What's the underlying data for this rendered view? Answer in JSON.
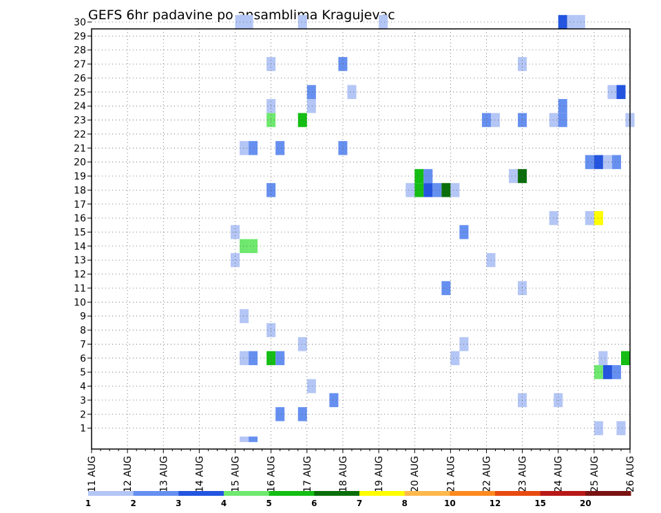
{
  "chart_data": {
    "type": "heatmap",
    "title": "GEFS 6hr padavine po ansamblima Kragujevac",
    "xlabel": "",
    "ylabel": "",
    "x_tick_labels": [
      "11 AUG",
      "12 AUG",
      "13 AUG",
      "14 AUG",
      "15 AUG",
      "16 AUG",
      "17 AUG",
      "18 AUG",
      "19 AUG",
      "20 AUG",
      "21 AUG",
      "22 AUG",
      "23 AUG",
      "24 AUG",
      "25 AUG",
      "26 AUG"
    ],
    "y_tick_labels": [
      "1",
      "2",
      "3",
      "4",
      "5",
      "6",
      "7",
      "8",
      "9",
      "10",
      "11",
      "12",
      "13",
      "14",
      "15",
      "16",
      "17",
      "18",
      "19",
      "20",
      "21",
      "22",
      "23",
      "24",
      "25",
      "26",
      "27",
      "28",
      "29",
      "30"
    ],
    "xlim": [
      0,
      60
    ],
    "ylim": [
      0,
      30
    ],
    "grid": true,
    "colorbar": {
      "labels": [
        "1",
        "2",
        "3",
        "4",
        "5",
        "6",
        "7",
        "8",
        "10",
        "12",
        "15",
        "20"
      ],
      "colors": [
        "#b4c6f5",
        "#6690f0",
        "#2455e0",
        "#6fe86f",
        "#14be14",
        "#0a6e0a",
        "#ffff00",
        "#ffb84d",
        "#ff8a1f",
        "#e84a10",
        "#b81818",
        "#7a1212",
        "#5a0c0c"
      ]
    },
    "cells": [
      {
        "x": 16.5,
        "y": 30,
        "c": 0
      },
      {
        "x": 17.0,
        "y": 30,
        "c": 0
      },
      {
        "x": 17.5,
        "y": 30,
        "c": 0
      },
      {
        "x": 23.5,
        "y": 30,
        "c": 0
      },
      {
        "x": 32.5,
        "y": 30,
        "c": 0
      },
      {
        "x": 52.5,
        "y": 30,
        "c": 2
      },
      {
        "x": 53.5,
        "y": 30,
        "c": 0
      },
      {
        "x": 54.5,
        "y": 30,
        "c": 0
      },
      {
        "x": 20,
        "y": 27,
        "c": 0
      },
      {
        "x": 28,
        "y": 27,
        "c": 1
      },
      {
        "x": 48,
        "y": 27,
        "c": 0
      },
      {
        "x": 24.5,
        "y": 25,
        "c": 1
      },
      {
        "x": 29,
        "y": 25,
        "c": 0
      },
      {
        "x": 58,
        "y": 25,
        "c": 0
      },
      {
        "x": 59,
        "y": 25,
        "c": 2
      },
      {
        "x": 20,
        "y": 24,
        "c": 0
      },
      {
        "x": 24.5,
        "y": 24,
        "c": 0
      },
      {
        "x": 52.5,
        "y": 24,
        "c": 1
      },
      {
        "x": 20,
        "y": 23,
        "c": 3
      },
      {
        "x": 23.5,
        "y": 23,
        "c": 4
      },
      {
        "x": 44,
        "y": 23,
        "c": 1
      },
      {
        "x": 45,
        "y": 23,
        "c": 0
      },
      {
        "x": 48,
        "y": 23,
        "c": 1
      },
      {
        "x": 51.5,
        "y": 23,
        "c": 0
      },
      {
        "x": 52.5,
        "y": 23,
        "c": 1
      },
      {
        "x": 60,
        "y": 23,
        "c": 0
      },
      {
        "x": 17,
        "y": 21,
        "c": 0
      },
      {
        "x": 18,
        "y": 21,
        "c": 1
      },
      {
        "x": 21,
        "y": 21,
        "c": 1
      },
      {
        "x": 28,
        "y": 21,
        "c": 1
      },
      {
        "x": 55.5,
        "y": 20,
        "c": 1
      },
      {
        "x": 56.5,
        "y": 20,
        "c": 2
      },
      {
        "x": 57.5,
        "y": 20,
        "c": 0
      },
      {
        "x": 58.5,
        "y": 20,
        "c": 1
      },
      {
        "x": 36.5,
        "y": 19,
        "c": 4
      },
      {
        "x": 37.5,
        "y": 19,
        "c": 1
      },
      {
        "x": 47,
        "y": 19,
        "c": 0
      },
      {
        "x": 48,
        "y": 19,
        "c": 5
      },
      {
        "x": 35.5,
        "y": 18,
        "c": 0
      },
      {
        "x": 36.5,
        "y": 18,
        "c": 4
      },
      {
        "x": 37.5,
        "y": 18,
        "c": 2
      },
      {
        "x": 38.5,
        "y": 18,
        "c": 1
      },
      {
        "x": 39.5,
        "y": 18,
        "c": 5
      },
      {
        "x": 40.5,
        "y": 18,
        "c": 0
      },
      {
        "x": 20,
        "y": 18,
        "c": 1
      },
      {
        "x": 51.5,
        "y": 16,
        "c": 0
      },
      {
        "x": 55.5,
        "y": 16,
        "c": 0
      },
      {
        "x": 56.5,
        "y": 16,
        "c": 6
      },
      {
        "x": 16,
        "y": 15,
        "c": 0
      },
      {
        "x": 41.5,
        "y": 15,
        "c": 1
      },
      {
        "x": 17,
        "y": 14,
        "c": 3
      },
      {
        "x": 18,
        "y": 14,
        "c": 3
      },
      {
        "x": 16,
        "y": 13,
        "c": 0
      },
      {
        "x": 44.5,
        "y": 13,
        "c": 0
      },
      {
        "x": 39.5,
        "y": 11,
        "c": 1
      },
      {
        "x": 48,
        "y": 11,
        "c": 0
      },
      {
        "x": 17,
        "y": 9,
        "c": 0
      },
      {
        "x": 20,
        "y": 8,
        "c": 0
      },
      {
        "x": 23.5,
        "y": 7,
        "c": 0
      },
      {
        "x": 41.5,
        "y": 7,
        "c": 0
      },
      {
        "x": 17,
        "y": 6,
        "c": 0
      },
      {
        "x": 18,
        "y": 6,
        "c": 1
      },
      {
        "x": 20,
        "y": 6,
        "c": 4
      },
      {
        "x": 21,
        "y": 6,
        "c": 1
      },
      {
        "x": 40.5,
        "y": 6,
        "c": 0
      },
      {
        "x": 57,
        "y": 6,
        "c": 0
      },
      {
        "x": 59.5,
        "y": 6,
        "c": 4
      },
      {
        "x": 56.5,
        "y": 5,
        "c": 3
      },
      {
        "x": 57.5,
        "y": 5,
        "c": 2
      },
      {
        "x": 58.5,
        "y": 5,
        "c": 1
      },
      {
        "x": 24.5,
        "y": 4,
        "c": 0
      },
      {
        "x": 27,
        "y": 3,
        "c": 1
      },
      {
        "x": 48,
        "y": 3,
        "c": 0
      },
      {
        "x": 52,
        "y": 3,
        "c": 0
      },
      {
        "x": 21,
        "y": 2,
        "c": 1
      },
      {
        "x": 23.5,
        "y": 2,
        "c": 1
      },
      {
        "x": 56.5,
        "y": 1,
        "c": 0
      },
      {
        "x": 59,
        "y": 1,
        "c": 0
      },
      {
        "x": 17,
        "y": 0,
        "c": 0
      },
      {
        "x": 18,
        "y": 0,
        "c": 1
      }
    ]
  }
}
